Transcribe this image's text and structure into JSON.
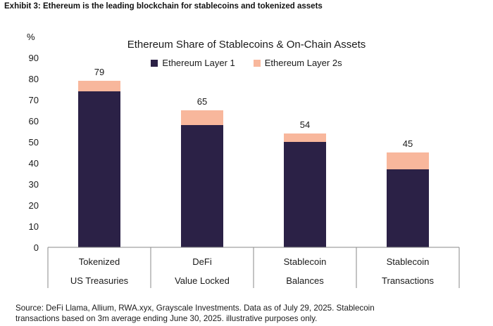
{
  "header": {
    "exhibit_title": "Exhibit 3: Ethereum is the leading blockchain for stablecoins and tokenized assets"
  },
  "chart_data": {
    "type": "bar",
    "stacked": true,
    "title": "Ethereum Share of Stablecoins & On-Chain Assets",
    "ylabel": "%",
    "ylim": [
      0,
      90
    ],
    "yticks": [
      0,
      10,
      20,
      30,
      40,
      50,
      60,
      70,
      80,
      90
    ],
    "categories": [
      [
        "Tokenized",
        "US Treasuries"
      ],
      [
        "DeFi",
        "Value Locked"
      ],
      [
        "Stablecoin",
        "Balances"
      ],
      [
        "Stablecoin",
        "Transactions"
      ]
    ],
    "series": [
      {
        "name": "Ethereum Layer 1",
        "color": "#2b2146",
        "values": [
          74,
          58,
          50,
          37
        ]
      },
      {
        "name": "Ethereum Layer 2s",
        "color": "#f8b79c",
        "values": [
          5,
          7,
          4,
          8
        ]
      }
    ],
    "totals": [
      79,
      65,
      54,
      45
    ],
    "legend_position": "top-center",
    "grid": false
  },
  "footer": {
    "source_line1": "Source: DeFi Llama, Allium, RWA.xyx, Grayscale Investments. Data as of July 29, 2025. Stablecoin",
    "source_line2": "transactions based on 3m average ending June 30, 2025. illustrative purposes only."
  }
}
